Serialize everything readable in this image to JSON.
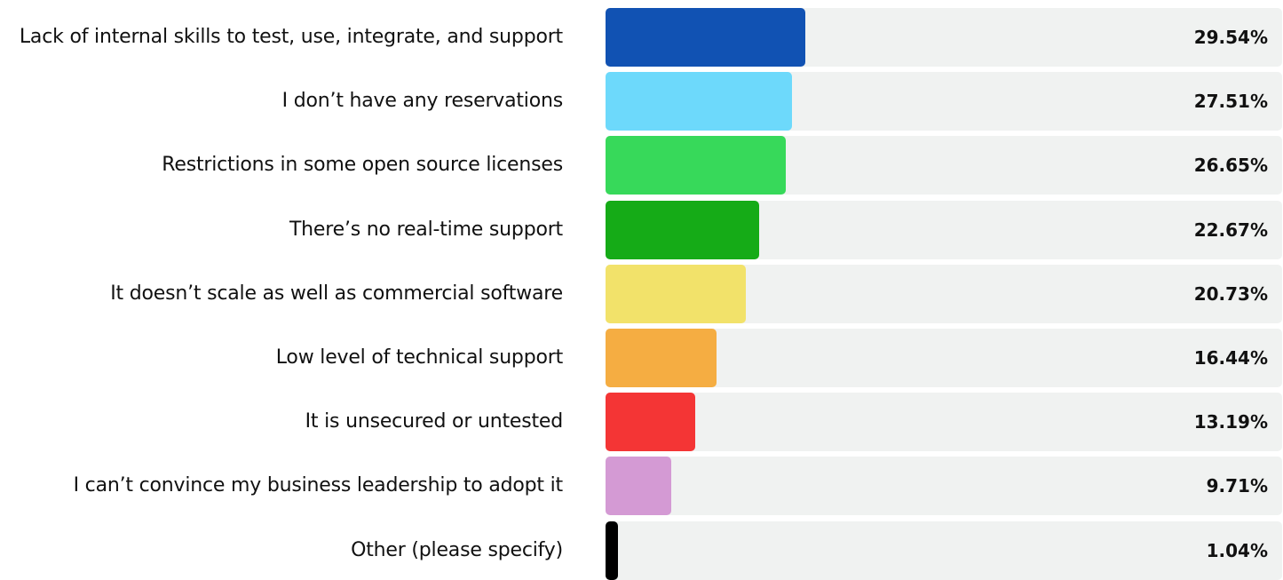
{
  "chart_data": {
    "type": "bar",
    "orientation": "horizontal",
    "categories": [
      "Lack of internal skills to test, use, integrate, and support",
      "I don’t have any reservations",
      "Restrictions in some open source licenses",
      "There’s no real-time support",
      "It doesn’t scale as well as commercial software",
      "Low level of technical support",
      "It is unsecured or untested",
      "I can’t convince my business leadership to adopt it",
      "Other (please specify)"
    ],
    "values": [
      29.54,
      27.51,
      26.65,
      22.67,
      20.73,
      16.44,
      13.19,
      9.71,
      1.04
    ],
    "value_labels": [
      "29.54%",
      "27.51%",
      "26.65%",
      "22.67%",
      "20.73%",
      "16.44%",
      "13.19%",
      "9.71%",
      "1.04%"
    ],
    "colors": [
      "#1152b3",
      "#6dd9fb",
      "#37d95a",
      "#15ab17",
      "#f2e26a",
      "#f5ad42",
      "#f43535",
      "#d49ad4",
      "#000000"
    ],
    "track_color": "#f0f2f1",
    "xlim": [
      0,
      100
    ],
    "title": "",
    "xlabel": "",
    "ylabel": "",
    "grid": false,
    "legend": "none"
  }
}
